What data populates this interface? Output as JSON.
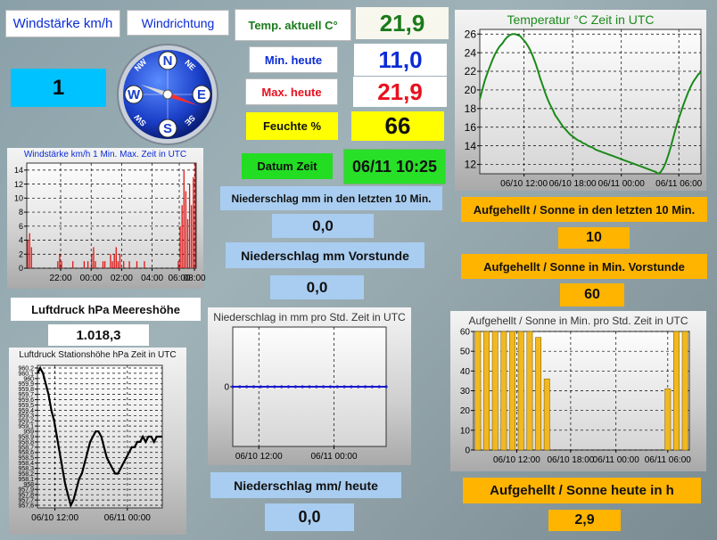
{
  "labels": {
    "windstaerke": "Windstärke km/h",
    "windrichtung": "Windrichtung",
    "temp_aktuell": "Temp. aktuell C°",
    "min_heute": "Min. heute",
    "max_heute": "Max. heute",
    "feuchte": "Feuchte %",
    "datum_zeit": "Datum Zeit",
    "niederschlag_10min": "Niederschlag mm in den letzten 10 Min.",
    "niederschlag_vorstunde": "Niederschlag mm Vorstunde",
    "luftdruck": "Luftdruck hPa Meereshöhe",
    "niederschlag_heute": "Niederschlag mm/ heute",
    "sonne_10min": "Aufgehellt / Sonne in den letzten 10 Min.",
    "sonne_vorstunde": "Aufgehellt / Sonne in Min. Vorstunde",
    "sonne_heute": "Aufgehellt / Sonne heute in h"
  },
  "values": {
    "windstaerke": "1",
    "temp_aktuell": "21,9",
    "min_heute": "11,0",
    "max_heute": "21,9",
    "feuchte": "66",
    "datum_zeit": "06/11 10:25",
    "niederschlag_10min": "0,0",
    "niederschlag_vorstunde": "0,0",
    "luftdruck": "1.018,3",
    "niederschlag_heute": "0,0",
    "sonne_10min": "10",
    "sonne_vorstunde": "60",
    "sonne_heute": "2,9"
  },
  "compass": {
    "letters": {
      "n": "N",
      "s": "S",
      "e": "E",
      "w": "W",
      "ne": "NE",
      "nw": "NW",
      "se": "SE",
      "sw": "SW"
    },
    "needle_direction_deg": 110,
    "icon": "compass-rose-icon"
  },
  "colors": {
    "blue_value": "#0a2bd6",
    "green_value": "#1a7a1a",
    "red_value": "#e8101e",
    "yellow_box": "#ffff00",
    "cyan_box": "#00c2ff",
    "green_box": "#22dd22",
    "orange_box": "#ffb400",
    "lightblue_box": "#a9cdf0",
    "temp_line": "#1a8a1a",
    "bar_fill": "#f2b820",
    "wind_bar": "#e01010",
    "rain_line": "#1a1acc"
  },
  "chart_data": [
    {
      "id": "temperature",
      "type": "line",
      "title": "Temperatur °C Zeit in UTC",
      "xlabel": "",
      "ylabel": "",
      "x_tick_labels": [
        "06/10 12:00",
        "06/10 18:00",
        "06/11 00:00",
        "06/11 06:00"
      ],
      "x": [
        0,
        1,
        2,
        3,
        4,
        5,
        6,
        7,
        8,
        9,
        10,
        11,
        12,
        13,
        14,
        15,
        16,
        17,
        18,
        19,
        20,
        21,
        22,
        23,
        24,
        25,
        26,
        27,
        28,
        29,
        30,
        31,
        32,
        33,
        34,
        35,
        36,
        37,
        38,
        39,
        40,
        41,
        42,
        43,
        44,
        45,
        46,
        47,
        48,
        49,
        50,
        51,
        52,
        53,
        54,
        55,
        56,
        57,
        58,
        59,
        60,
        61,
        62,
        63,
        64,
        65,
        66,
        67,
        68,
        69,
        70,
        71,
        72,
        73,
        74,
        75,
        76,
        77,
        78,
        79,
        80,
        81,
        82,
        83,
        84,
        85,
        86,
        87,
        88
      ],
      "y_tick_labels": [
        "12",
        "14",
        "16",
        "18",
        "20",
        "22",
        "24",
        "26"
      ],
      "ylim": [
        11,
        26.5
      ],
      "series": [
        {
          "values": [
            19.0,
            20.0,
            21.0,
            21.8,
            22.5,
            23.2,
            23.8,
            24.3,
            24.7,
            25.0,
            25.4,
            25.7,
            25.9,
            26.0,
            26.0,
            25.9,
            25.8,
            25.5,
            25.2,
            24.8,
            24.3,
            23.7,
            23.0,
            22.2,
            21.3,
            20.5,
            19.7,
            19.0,
            18.4,
            17.9,
            17.3,
            16.9,
            16.5,
            16.1,
            15.8,
            15.5,
            15.2,
            15.0,
            14.8,
            14.6,
            14.5,
            14.3,
            14.2,
            14.0,
            13.9,
            13.8,
            13.6,
            13.5,
            13.4,
            13.3,
            13.2,
            13.1,
            13.0,
            12.9,
            12.8,
            12.7,
            12.6,
            12.5,
            12.4,
            12.3,
            12.2,
            12.1,
            12.0,
            11.9,
            11.8,
            11.7,
            11.6,
            11.5,
            11.4,
            11.3,
            11.2,
            11.0,
            11.2,
            11.6,
            12.2,
            13.0,
            13.9,
            14.9,
            15.9,
            16.8,
            17.6,
            18.4,
            19.1,
            19.8,
            20.4,
            20.9,
            21.3,
            21.7,
            21.9
          ]
        }
      ]
    },
    {
      "id": "wind",
      "type": "bar",
      "title": "Windstärke km/h 1 Min. Max. Zeit in UTC",
      "x_tick_labels": [
        "22:00",
        "00:00",
        "02:00",
        "04:00",
        "06:00",
        "08:00"
      ],
      "y_tick_labels": [
        "0",
        "2",
        "4",
        "6",
        "8",
        "10",
        "12",
        "14"
      ],
      "ylim": [
        0,
        15
      ],
      "x": [
        0,
        1,
        2,
        3,
        4,
        5,
        6,
        7,
        8,
        9,
        10,
        11,
        12,
        13,
        14,
        15,
        16,
        17,
        18,
        19,
        20,
        21,
        22,
        23,
        24,
        25,
        26,
        27,
        28,
        29,
        30,
        31,
        32,
        33,
        34,
        35,
        36,
        37,
        38,
        39,
        40,
        41,
        42,
        43,
        44,
        45,
        46,
        47,
        48,
        49,
        50,
        51,
        52,
        53,
        54,
        55,
        56,
        57,
        58,
        59,
        60,
        61,
        62,
        63,
        64,
        65,
        66,
        67,
        68,
        69,
        70,
        71,
        72,
        73,
        74,
        75,
        76,
        77,
        78,
        79,
        80,
        81,
        82,
        83,
        84,
        85,
        86,
        87,
        88,
        89
      ],
      "series": [
        {
          "values": [
            4,
            5,
            3,
            0,
            0,
            0,
            0,
            0,
            0,
            0,
            0,
            0,
            0,
            0,
            0,
            0,
            1,
            2,
            1,
            0,
            0,
            0,
            0,
            0,
            1,
            0,
            0,
            0,
            0,
            0,
            1,
            0,
            1,
            0,
            2,
            3,
            1,
            0,
            0,
            0,
            1,
            1,
            0,
            0,
            2,
            1,
            2,
            3,
            1,
            2,
            0,
            1,
            0,
            0,
            1,
            0,
            0,
            0,
            1,
            0,
            0,
            0,
            1,
            0,
            0,
            0,
            0,
            0,
            0,
            0,
            0,
            0,
            0,
            0,
            0,
            0,
            0,
            0,
            0,
            0,
            1,
            6,
            9,
            14,
            11,
            7,
            12,
            9,
            13,
            15
          ]
        }
      ]
    },
    {
      "id": "pressure",
      "type": "line",
      "title": "Luftdruck Stationshöhe hPa Zeit in UTC",
      "x_tick_labels": [
        "06/10 12:00",
        "06/11 00:00"
      ],
      "y_tick_labels": [
        "957,6",
        "957,7",
        "957,8",
        "957,9",
        "958",
        "958,1",
        "958,2",
        "958,3",
        "958,4",
        "958,5",
        "958,6",
        "958,7",
        "958,8",
        "958,9",
        "959",
        "959,1",
        "959,2",
        "959,3",
        "959,4",
        "959,5",
        "959,6",
        "959,7",
        "959,8",
        "959,9",
        "960",
        "960,1",
        "960,2"
      ],
      "ylim": [
        957.55,
        960.25
      ],
      "x": [
        0,
        1,
        2,
        3,
        4,
        5,
        6,
        7,
        8,
        9,
        10,
        11,
        12,
        13,
        14,
        15,
        16,
        17,
        18,
        19,
        20,
        21,
        22,
        23,
        24,
        25,
        26,
        27,
        28,
        29,
        30,
        31,
        32,
        33,
        34,
        35,
        36,
        37,
        38,
        39,
        40,
        41,
        42,
        43,
        44,
        45
      ],
      "series": [
        {
          "values": [
            960.1,
            960.2,
            960.1,
            959.9,
            959.7,
            959.4,
            959.2,
            958.9,
            958.6,
            958.3,
            958.0,
            957.8,
            957.6,
            957.7,
            957.9,
            958.1,
            958.2,
            958.4,
            958.6,
            958.8,
            958.9,
            959.0,
            959.0,
            958.9,
            958.7,
            958.5,
            958.4,
            958.3,
            958.2,
            958.2,
            958.3,
            958.4,
            958.5,
            958.6,
            958.7,
            958.7,
            958.8,
            958.8,
            958.9,
            958.8,
            958.9,
            958.9,
            958.8,
            958.9,
            958.9,
            958.9
          ]
        }
      ]
    },
    {
      "id": "rain",
      "type": "line",
      "title": "Niederschlag in mm pro Std. Zeit in UTC",
      "x_tick_labels": [
        "06/10 12:00",
        "06/11 00:00"
      ],
      "y_tick_labels": [
        "0"
      ],
      "ylim": [
        -1,
        1
      ],
      "x": [
        0,
        1,
        2,
        3,
        4,
        5,
        6,
        7,
        8,
        9,
        10,
        11,
        12,
        13,
        14,
        15,
        16,
        17,
        18,
        19,
        20,
        21,
        22
      ],
      "series": [
        {
          "values": [
            0,
            0,
            0,
            0,
            0,
            0,
            0,
            0,
            0,
            0,
            0,
            0,
            0,
            0,
            0,
            0,
            0,
            0,
            0,
            0,
            0,
            0,
            0
          ]
        }
      ]
    },
    {
      "id": "sun",
      "type": "bar",
      "title": "Aufgehellt / Sonne in Min. pro Std. Zeit in UTC",
      "x_tick_labels": [
        "06/10 12:00",
        "06/10 18:00",
        "06/11 00:00",
        "06/11 06:00"
      ],
      "y_tick_labels": [
        "0",
        "10",
        "20",
        "30",
        "40",
        "50",
        "60"
      ],
      "ylim": [
        0,
        60
      ],
      "x": [
        0,
        1,
        2,
        3,
        4,
        5,
        6,
        7,
        8,
        9,
        10,
        11,
        12,
        13,
        14,
        15,
        16,
        17,
        18,
        19,
        20,
        21,
        22,
        23,
        24
      ],
      "series": [
        {
          "values": [
            60,
            60,
            60,
            60,
            60,
            60,
            60,
            57,
            36,
            0,
            0,
            0,
            0,
            0,
            0,
            0,
            0,
            0,
            0,
            0,
            0,
            0,
            31,
            60,
            60
          ]
        }
      ]
    }
  ]
}
